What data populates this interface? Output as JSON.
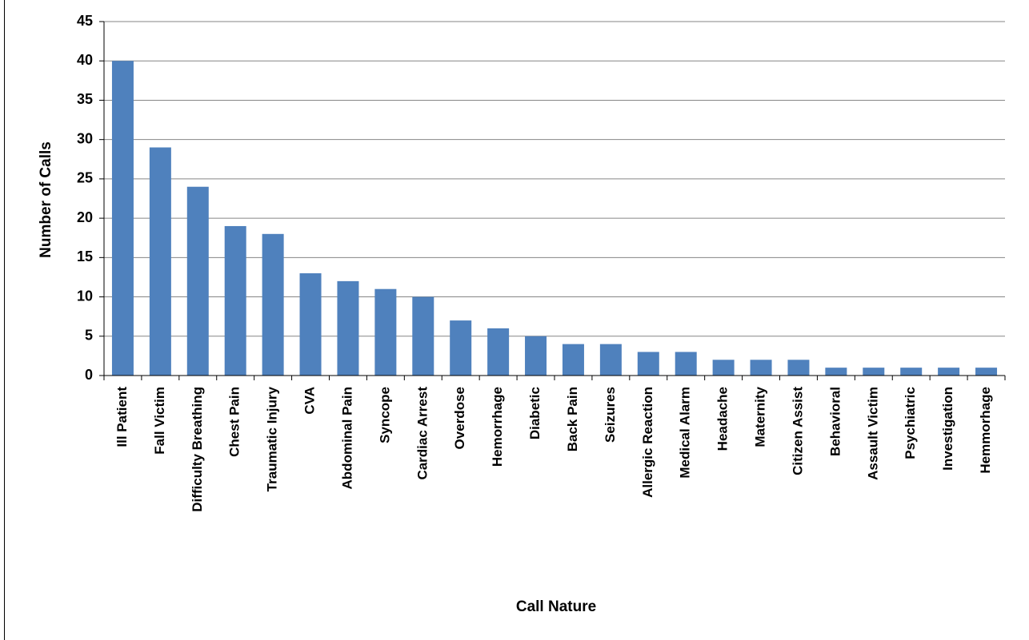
{
  "chart_data": {
    "type": "bar",
    "x_label": "Call Nature",
    "y_label": "Number of Calls",
    "categories": [
      "Ill Patient",
      "Fall Victim",
      "Difficulty Breathing",
      "Chest Pain",
      "Traumatic Injury",
      "CVA",
      "Abdominal Pain",
      "Syncope",
      "Cardiac Arrest",
      "Overdose",
      "Hemorrhage",
      "Diabetic",
      "Back Pain",
      "Seizures",
      "Allergic Reaction",
      "Medical Alarm",
      "Headache",
      "Maternity",
      "Citizen Assist",
      "Behavioral",
      "Assault Victim",
      "Psychiatric",
      "Investigation",
      "Hemmorhage"
    ],
    "values": [
      40,
      29,
      24,
      19,
      18,
      13,
      12,
      11,
      10,
      7,
      6,
      5,
      4,
      4,
      3,
      3,
      2,
      2,
      2,
      1,
      1,
      1,
      1,
      1
    ],
    "color": "#4f81bd",
    "ylim": [
      0,
      45
    ],
    "yticks": [
      0,
      5,
      10,
      15,
      20,
      25,
      30,
      35,
      40,
      45
    ],
    "grid": true
  }
}
